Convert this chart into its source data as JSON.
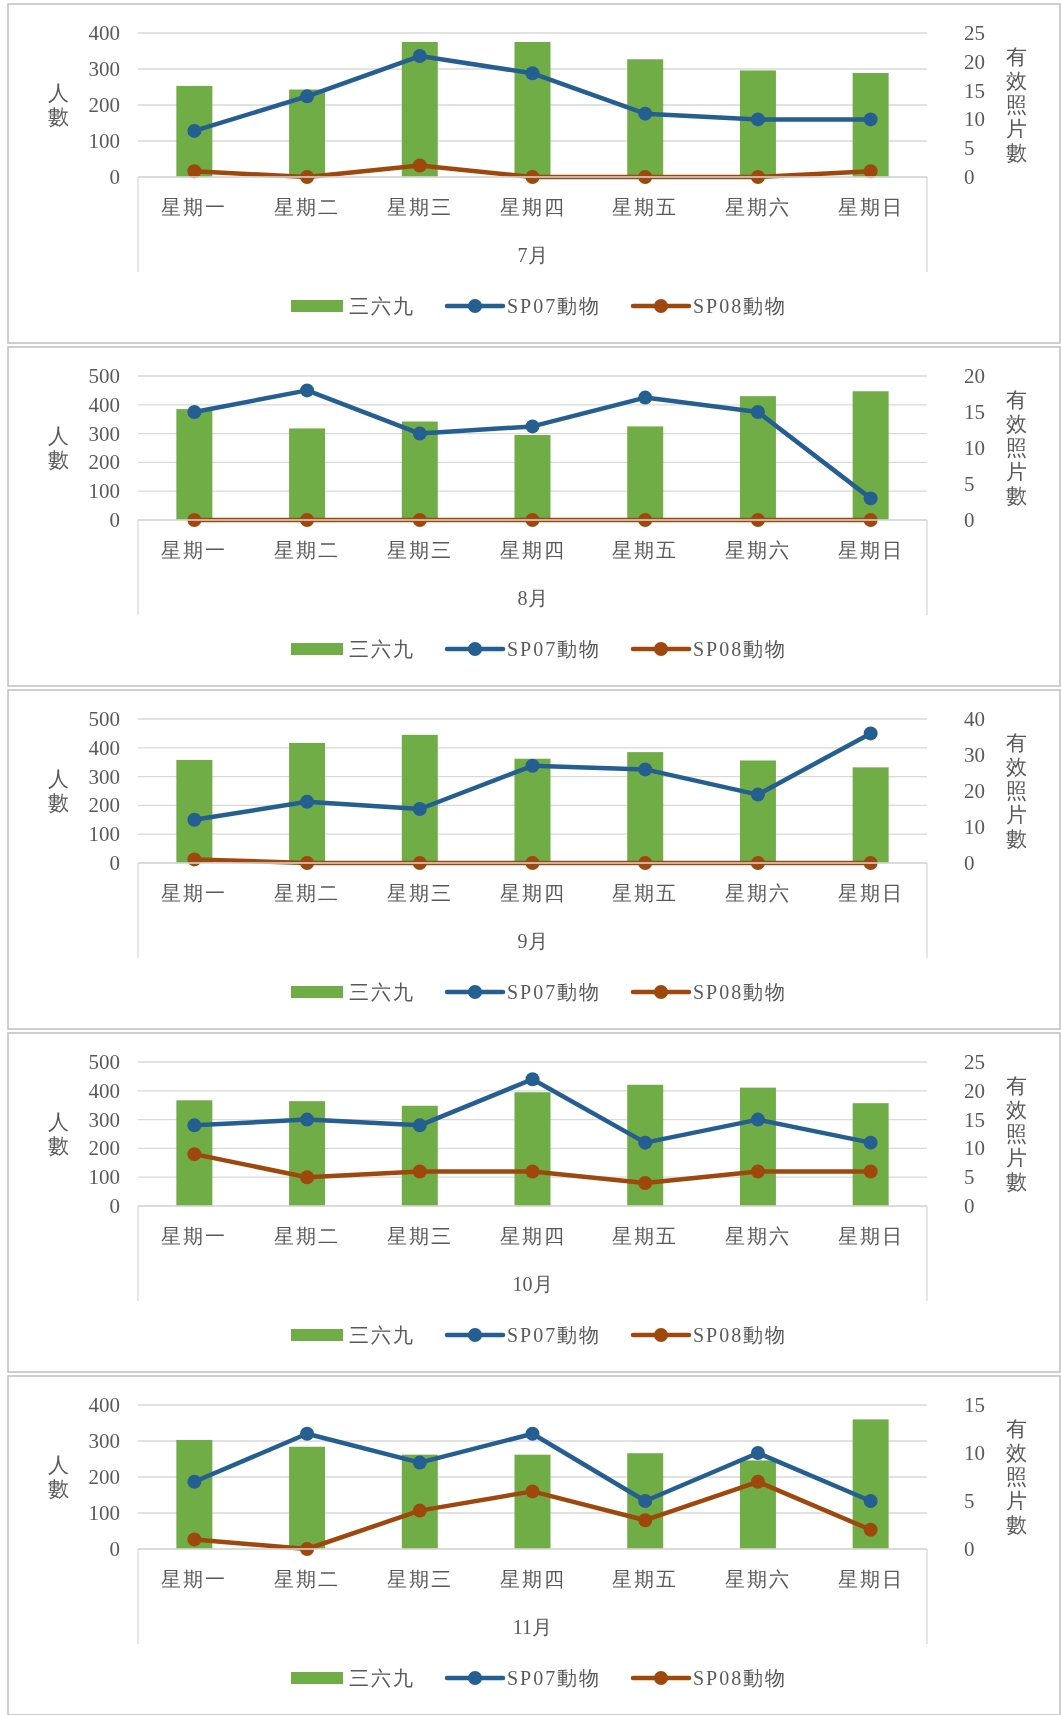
{
  "chart_data": [
    {
      "type": "bar",
      "xlabel": "7月",
      "ylabel": "人數",
      "y2label": "有效照片數",
      "categories": [
        "星期一",
        "星期二",
        "星期三",
        "星期四",
        "星期五",
        "星期六",
        "星期日"
      ],
      "ylim": [
        0,
        400
      ],
      "yticks": [
        0,
        100,
        200,
        300,
        400
      ],
      "y2lim": [
        0,
        25
      ],
      "y2ticks": [
        0,
        5,
        10,
        15,
        20,
        25
      ],
      "grid": "y",
      "legend": "bottom",
      "marker": "circle",
      "series": [
        {
          "name": "三六九",
          "color": "#70ad47",
          "values": [
            253,
            243,
            375,
            375,
            327,
            296,
            289
          ]
        },
        {
          "name": "SP07動物",
          "type": "line",
          "axis": "y2",
          "color": "#255e91",
          "values": [
            8,
            14,
            21,
            18,
            11,
            10,
            10
          ]
        },
        {
          "name": "SP08動物",
          "type": "line",
          "axis": "y2",
          "color": "#9e480e",
          "values": [
            1,
            0,
            2,
            0,
            0,
            0,
            1
          ]
        }
      ]
    },
    {
      "type": "bar",
      "xlabel": "8月",
      "ylabel": "人數",
      "y2label": "有效照片數",
      "categories": [
        "星期一",
        "星期二",
        "星期三",
        "星期四",
        "星期五",
        "星期六",
        "星期日"
      ],
      "ylim": [
        0,
        500
      ],
      "yticks": [
        0,
        100,
        200,
        300,
        400,
        500
      ],
      "y2lim": [
        0,
        20
      ],
      "y2ticks": [
        0,
        5,
        10,
        15,
        20
      ],
      "grid": "y",
      "legend": "bottom",
      "marker": "circle",
      "series": [
        {
          "name": "三六九",
          "color": "#70ad47",
          "values": [
            385,
            318,
            342,
            295,
            325,
            430,
            447
          ]
        },
        {
          "name": "SP07動物",
          "type": "line",
          "axis": "y2",
          "color": "#255e91",
          "values": [
            15,
            18,
            12,
            13,
            17,
            15,
            3
          ]
        },
        {
          "name": "SP08動物",
          "type": "line",
          "axis": "y2",
          "color": "#9e480e",
          "values": [
            0,
            0,
            0,
            0,
            0,
            0,
            0
          ]
        }
      ]
    },
    {
      "type": "bar",
      "xlabel": "9月",
      "ylabel": "人數",
      "y2label": "有效照片數",
      "categories": [
        "星期一",
        "星期二",
        "星期三",
        "星期四",
        "星期五",
        "星期六",
        "星期日"
      ],
      "ylim": [
        0,
        500
      ],
      "yticks": [
        0,
        100,
        200,
        300,
        400,
        500
      ],
      "y2lim": [
        0,
        40
      ],
      "y2ticks": [
        0,
        10,
        20,
        30,
        40
      ],
      "grid": "y",
      "legend": "bottom",
      "marker": "circle",
      "series": [
        {
          "name": "三六九",
          "color": "#70ad47",
          "values": [
            358,
            417,
            445,
            362,
            385,
            356,
            332
          ]
        },
        {
          "name": "SP07動物",
          "type": "line",
          "axis": "y2",
          "color": "#255e91",
          "values": [
            12,
            17,
            15,
            27,
            26,
            19,
            36
          ]
        },
        {
          "name": "SP08動物",
          "type": "line",
          "axis": "y2",
          "color": "#9e480e",
          "values": [
            1,
            0,
            0,
            0,
            0,
            0,
            0
          ]
        }
      ]
    },
    {
      "type": "bar",
      "xlabel": "10月",
      "ylabel": "人數",
      "y2label": "有效照片數",
      "categories": [
        "星期一",
        "星期二",
        "星期三",
        "星期四",
        "星期五",
        "星期六",
        "星期日"
      ],
      "ylim": [
        0,
        500
      ],
      "yticks": [
        0,
        100,
        200,
        300,
        400,
        500
      ],
      "y2lim": [
        0,
        25
      ],
      "y2ticks": [
        0,
        5,
        10,
        15,
        20,
        25
      ],
      "grid": "y",
      "legend": "bottom",
      "marker": "circle",
      "series": [
        {
          "name": "三六九",
          "color": "#70ad47",
          "values": [
            367,
            364,
            348,
            395,
            421,
            411,
            357
          ]
        },
        {
          "name": "SP07動物",
          "type": "line",
          "axis": "y2",
          "color": "#255e91",
          "values": [
            14,
            15,
            14,
            22,
            11,
            15,
            11
          ]
        },
        {
          "name": "SP08動物",
          "type": "line",
          "axis": "y2",
          "color": "#9e480e",
          "values": [
            9,
            5,
            6,
            6,
            4,
            6,
            6
          ]
        }
      ]
    },
    {
      "type": "bar",
      "xlabel": "11月",
      "ylabel": "人數",
      "y2label": "有效照片數",
      "categories": [
        "星期一",
        "星期二",
        "星期三",
        "星期四",
        "星期五",
        "星期六",
        "星期日"
      ],
      "ylim": [
        0,
        400
      ],
      "yticks": [
        0,
        100,
        200,
        300,
        400
      ],
      "y2lim": [
        0,
        15
      ],
      "y2ticks": [
        0,
        5,
        10,
        15
      ],
      "grid": "y",
      "legend": "bottom",
      "marker": "circle",
      "series": [
        {
          "name": "三六九",
          "color": "#70ad47",
          "values": [
            303,
            284,
            262,
            262,
            266,
            246,
            360
          ]
        },
        {
          "name": "SP07動物",
          "type": "line",
          "axis": "y2",
          "color": "#255e91",
          "values": [
            7,
            12,
            9,
            12,
            5,
            10,
            5
          ]
        },
        {
          "name": "SP08動物",
          "type": "line",
          "axis": "y2",
          "color": "#9e480e",
          "values": [
            1,
            0,
            4,
            6,
            3,
            7,
            2
          ]
        }
      ]
    }
  ]
}
